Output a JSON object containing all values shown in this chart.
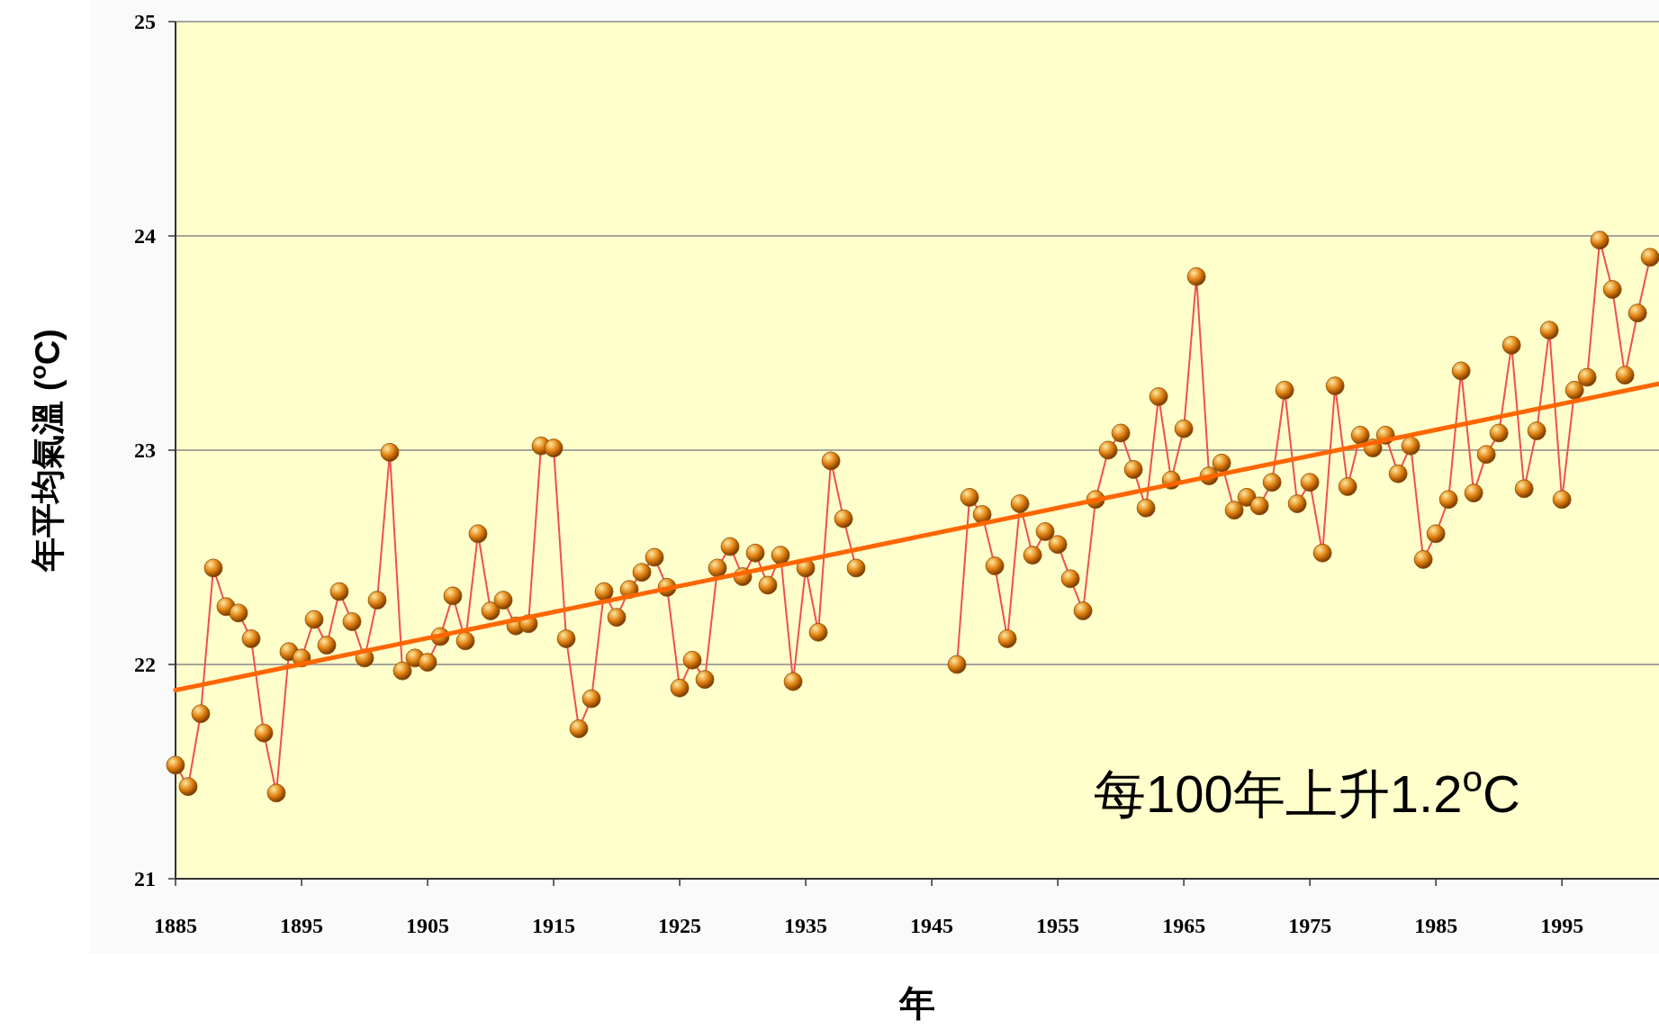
{
  "chart_data": {
    "type": "line",
    "xlabel": "年",
    "ylabel": "年平均氣溫 ($^{o}$C)",
    "annotations": [
      "每100年上升1.2$^{o}$C"
    ],
    "x": [
      1885,
      1886,
      1887,
      1888,
      1889,
      1890,
      1891,
      1892,
      1893,
      1894,
      1895,
      1896,
      1897,
      1898,
      1899,
      1900,
      1901,
      1902,
      1903,
      1904,
      1905,
      1906,
      1907,
      1908,
      1909,
      1910,
      1911,
      1912,
      1913,
      1914,
      1915,
      1916,
      1917,
      1918,
      1919,
      1920,
      1921,
      1922,
      1923,
      1924,
      1925,
      1926,
      1927,
      1928,
      1929,
      1930,
      1931,
      1932,
      1933,
      1934,
      1935,
      1936,
      1937,
      1938,
      1939,
      1940,
      1941,
      1942,
      1943,
      1944,
      1945,
      1946,
      1947,
      1948,
      1949,
      1950,
      1951,
      1952,
      1953,
      1954,
      1955,
      1956,
      1957,
      1958,
      1959,
      1960,
      1961,
      1962,
      1963,
      1964,
      1965,
      1966,
      1967,
      1968,
      1969,
      1970,
      1971,
      1972,
      1973,
      1974,
      1975,
      1976,
      1977,
      1978,
      1979,
      1980,
      1981,
      1982,
      1983,
      1984,
      1985,
      1986,
      1987,
      1988,
      1989,
      1990,
      1991,
      1992,
      1993,
      1994,
      1995,
      1996,
      1997,
      1998,
      1999,
      2000,
      2001,
      2002
    ],
    "series": [
      {
        "color": "#f05050",
        "marker": "circle",
        "values": [
          21.53,
          21.43,
          21.77,
          22.45,
          22.27,
          22.24,
          22.12,
          21.68,
          21.4,
          22.06,
          22.03,
          22.21,
          22.09,
          22.34,
          22.2,
          22.03,
          22.3,
          22.99,
          21.97,
          22.03,
          22.01,
          22.13,
          22.32,
          22.11,
          22.61,
          22.25,
          22.3,
          22.18,
          22.19,
          23.02,
          23.01,
          22.12,
          21.7,
          21.84,
          22.34,
          22.22,
          22.35,
          22.43,
          22.5,
          22.36,
          21.89,
          22.02,
          21.93,
          22.45,
          22.55,
          22.41,
          22.52,
          22.37,
          22.51,
          21.92,
          22.45,
          22.15,
          22.95,
          22.68,
          22.45,
          null,
          null,
          null,
          null,
          null,
          null,
          null,
          22.0,
          22.78,
          22.7,
          22.46,
          22.12,
          22.75,
          22.51,
          22.62,
          22.56,
          22.4,
          22.25,
          22.77,
          23.0,
          23.08,
          22.91,
          22.73,
          23.25,
          22.86,
          23.1,
          23.81,
          22.88,
          22.94,
          22.72,
          22.78,
          22.74,
          22.85,
          23.28,
          22.75,
          22.85,
          22.52,
          23.3,
          22.83,
          23.07,
          23.01,
          23.07,
          22.89,
          23.02,
          22.49,
          22.61,
          22.77,
          23.37,
          22.8,
          22.98,
          23.08,
          23.49,
          22.82,
          23.09,
          23.56,
          22.77,
          23.28,
          23.34,
          23.98,
          23.75,
          23.35,
          23.64,
          23.9
        ]
      },
      {
        "color": "#ff6600",
        "marker": "none",
        "x": [
          1885,
          2002.7
        ],
        "values": [
          21.88,
          23.31
        ]
      }
    ],
    "xlim": [
      1885,
      2002.7
    ],
    "ylim": [
      21,
      25
    ],
    "xticks": [
      1885,
      1895,
      1905,
      1915,
      1925,
      1935,
      1945,
      1955,
      1965,
      1975,
      1985,
      1995
    ],
    "yticks": [
      21,
      22,
      23,
      24,
      25
    ],
    "grid": "y"
  }
}
